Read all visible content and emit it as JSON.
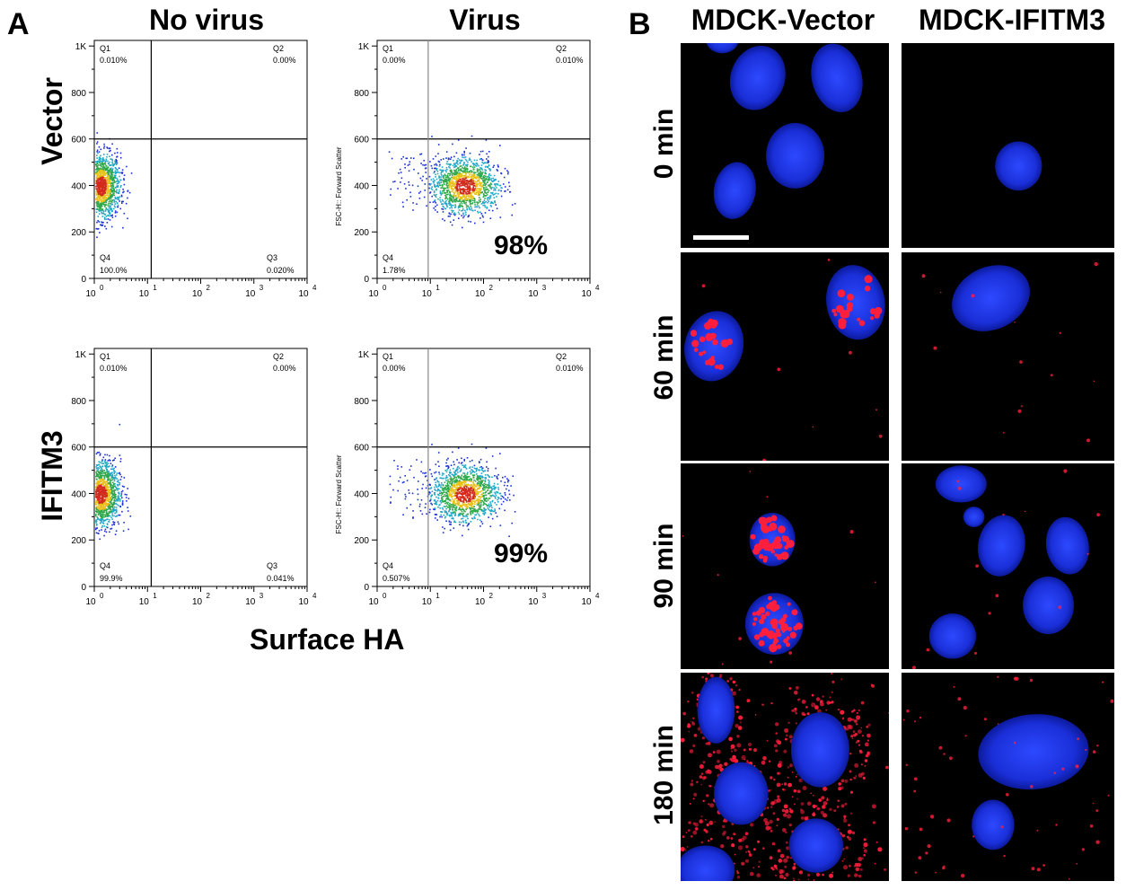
{
  "panelA": {
    "letter": "A",
    "columns": [
      "No virus",
      "Virus"
    ],
    "rows": [
      "Vector",
      "IFITM3"
    ],
    "x_axis_title": "Surface HA",
    "y_axis_label": "FSC-H:: Forward Scatter",
    "y_ticks": [
      "0",
      "200",
      "400",
      "600",
      "800",
      "1K"
    ],
    "x_tick_base": "10",
    "x_tick_exps": [
      "0",
      "1",
      "2",
      "3",
      "4"
    ],
    "plots": [
      {
        "q1": "Q1",
        "q1_val": "0.010%",
        "q2": "Q2",
        "q2_val": "0.00%",
        "q3": "Q3",
        "q3_val": "0.020%",
        "q4": "Q4",
        "q4_val": "100.0%",
        "percent": ""
      },
      {
        "q1": "Q1",
        "q1_val": "0.00%",
        "q2": "Q2",
        "q2_val": "0.010%",
        "q3": "",
        "q3_val": "",
        "q4": "Q4",
        "q4_val": "1.78%",
        "percent": "98%"
      },
      {
        "q1": "Q1",
        "q1_val": "0.010%",
        "q2": "Q2",
        "q2_val": "0.00%",
        "q3": "Q3",
        "q3_val": "0.041%",
        "q4": "Q4",
        "q4_val": "99.9%",
        "percent": ""
      },
      {
        "q1": "Q1",
        "q1_val": "0.00%",
        "q2": "Q2",
        "q2_val": "0.010%",
        "q3": "",
        "q3_val": "",
        "q4": "Q4",
        "q4_val": "0.507%",
        "percent": "99%"
      }
    ]
  },
  "panelB": {
    "letter": "B",
    "columns": [
      "MDCK-Vector",
      "MDCK-IFITM3"
    ],
    "times": [
      "0 min",
      "60 min",
      "90 min",
      "180 min"
    ],
    "colors": {
      "nucleus": "#1a2fd8",
      "virus": "#ff1e3c",
      "background": "#000000"
    }
  }
}
